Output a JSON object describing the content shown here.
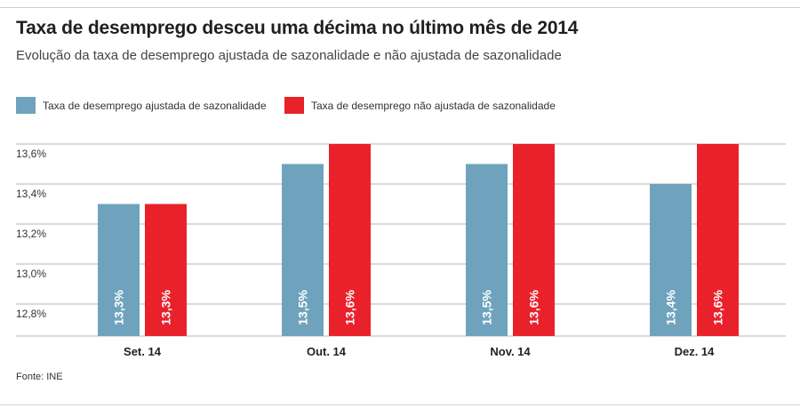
{
  "header": {
    "title": "Taxa de desemprego desceu uma décima no último mês de 2014",
    "subtitle": "Evolução da taxa de desemprego ajustada de sazonalidade e não ajustada de sazonalidade"
  },
  "footer": {
    "source": "Fonte: INE"
  },
  "colors": {
    "adjusted": "#6fa3bd",
    "unadjusted": "#e8212b",
    "grid": "#b5b5b5"
  },
  "chart_data": {
    "type": "bar",
    "title": "Taxa de desemprego desceu uma décima no último mês de 2014",
    "subtitle": "Evolução da taxa de desemprego ajustada de sazonalidade e não ajustada de sazonalidade",
    "categories": [
      "Set. 14",
      "Out. 14",
      "Nov. 14",
      "Dez. 14"
    ],
    "series": [
      {
        "name": "Taxa de desemprego ajustada de sazonalidade",
        "color": "#6fa3bd",
        "values": [
          13.3,
          13.5,
          13.5,
          13.4
        ],
        "labels": [
          "13,3%",
          "13,5%",
          "13,5%",
          "13,4%"
        ]
      },
      {
        "name": "Taxa de desemprego não ajustada de sazonalidade",
        "color": "#e8212b",
        "values": [
          13.3,
          13.6,
          13.6,
          13.6
        ],
        "labels": [
          "13,3%",
          "13,6%",
          "13,6%",
          "13,6%"
        ]
      }
    ],
    "yticks": [
      12.8,
      13.0,
      13.2,
      13.4,
      13.6
    ],
    "ytick_labels": [
      "12,8%",
      "13,0%",
      "13,2%",
      "13,4%",
      "13,6%"
    ],
    "ylim": [
      12.64,
      13.64
    ],
    "xlabel": "",
    "ylabel": "",
    "grid": true,
    "legend_position": "top-left"
  }
}
